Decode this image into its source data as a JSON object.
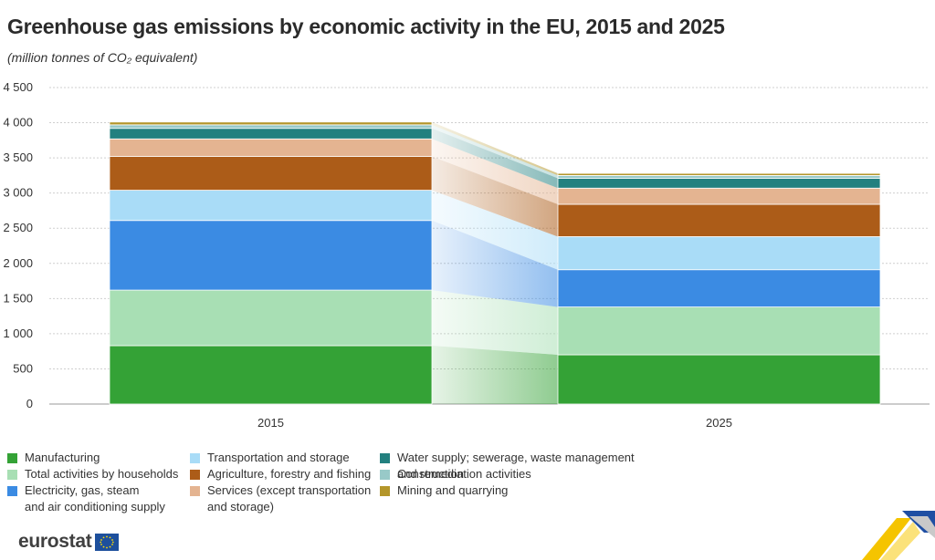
{
  "title": "Greenhouse gas emissions by economic activity in the EU, 2015 and 2025",
  "subtitle": "(million tonnes of CO₂ equivalent)",
  "brand": {
    "logo_text": "eurostat"
  },
  "chart_data": {
    "type": "bar",
    "stacked": true,
    "categories": [
      "2015",
      "2025"
    ],
    "ylim": [
      0,
      4500
    ],
    "yticks": [
      0,
      500,
      1000,
      1500,
      2000,
      2500,
      3000,
      3500,
      4000,
      4500
    ],
    "ytick_labels": [
      "0",
      "500",
      "1 000",
      "1 500",
      "2 000",
      "2 500",
      "3 000",
      "3 500",
      "4 000",
      "4 500"
    ],
    "grid": true,
    "legend_position": "bottom",
    "series": [
      {
        "name": "Manufacturing",
        "color": "#34a236",
        "values": [
          830,
          700
        ]
      },
      {
        "name": "Total activities by households",
        "color": "#a8dfb4",
        "values": [
          790,
          680
        ]
      },
      {
        "name": "Electricity, gas, steam\nand air conditioning supply",
        "color": "#3b8be3",
        "values": [
          990,
          530
        ]
      },
      {
        "name": "Transportation and storage",
        "color": "#a9dcf7",
        "values": [
          430,
          470
        ]
      },
      {
        "name": "Agriculture, forestry and fishing",
        "color": "#ac5c18",
        "values": [
          480,
          460
        ]
      },
      {
        "name": "Services (except transportation\nand storage)",
        "color": "#e4b491",
        "values": [
          250,
          230
        ]
      },
      {
        "name": "Water supply; sewerage, waste management\nand remediation activities",
        "color": "#23807f",
        "values": [
          150,
          140
        ]
      },
      {
        "name": "Construction",
        "color": "#98c9c8",
        "values": [
          50,
          40
        ]
      },
      {
        "name": "Mining and quarrying",
        "color": "#b4962a",
        "values": [
          40,
          30
        ]
      }
    ]
  }
}
